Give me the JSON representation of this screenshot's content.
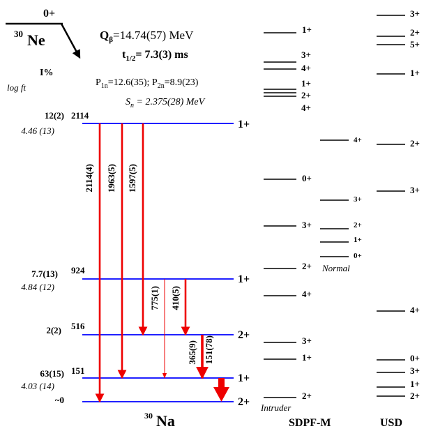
{
  "parent": {
    "spin": "0+",
    "mass": "30",
    "symbol": "Ne",
    "q_label": "Q",
    "q_sub": "β",
    "q_value": "=14.74(57) MeV",
    "t_label": "t",
    "t_sub": "1/2",
    "t_value": "= 7.3(3) ms",
    "p_label": "P",
    "p1n_sub": "1n",
    "p1n_value": "=12.6(35); ",
    "p2n_sub": "2n",
    "p2n_value": "=8.9(23)",
    "sn_label": "S",
    "sn_sub": "n",
    "sn_value": " = 2.375(28) MeV"
  },
  "column_headers": {
    "intensity": "I%",
    "logft": "log ft"
  },
  "daughter": {
    "mass": "30",
    "symbol": "Na",
    "levels": [
      {
        "energy": "2114",
        "spin": "1+",
        "intensity": "12(2)",
        "logft": "4.46 (13)"
      },
      {
        "energy": "924",
        "spin": "1+",
        "intensity": "7.7(13)",
        "logft": "4.84 (12)"
      },
      {
        "energy": "516",
        "spin": "2+",
        "intensity": "2(2)",
        "logft": ""
      },
      {
        "energy": "151",
        "spin": "1+",
        "intensity": "63(15)",
        "logft": "4.03 (14)"
      },
      {
        "energy": "",
        "spin": "2+",
        "intensity": "~0",
        "logft": ""
      }
    ],
    "transitions": [
      {
        "label": "2114(4)"
      },
      {
        "label": "1963(5)"
      },
      {
        "label": "1597(5)"
      },
      {
        "label": "775(1)"
      },
      {
        "label": "410(5)"
      },
      {
        "label": "365(9)"
      },
      {
        "label": "151(78)"
      }
    ]
  },
  "sdpf_intruder": {
    "spins": [
      "1+",
      "3+",
      "4+",
      "1+",
      "2+",
      "4+",
      "0+",
      "3+",
      "2+",
      "4+",
      "3+",
      "1+",
      "2+"
    ],
    "tag": "Intruder"
  },
  "sdpf_normal": {
    "spins": [
      "4+",
      "3+",
      "2+",
      "1+",
      "0+"
    ],
    "tag": "Normal"
  },
  "usd": {
    "spins": [
      "3+",
      "2+",
      "5+",
      "1+",
      "2+",
      "3+",
      "4+",
      "0+",
      "3+",
      "1+",
      "2+"
    ]
  },
  "model_labels": {
    "sdpf": "SDPF-M",
    "usd": "USD"
  },
  "colors": {
    "level_line": "#0000ff",
    "transition": "#ee0000",
    "text": "#000000"
  }
}
